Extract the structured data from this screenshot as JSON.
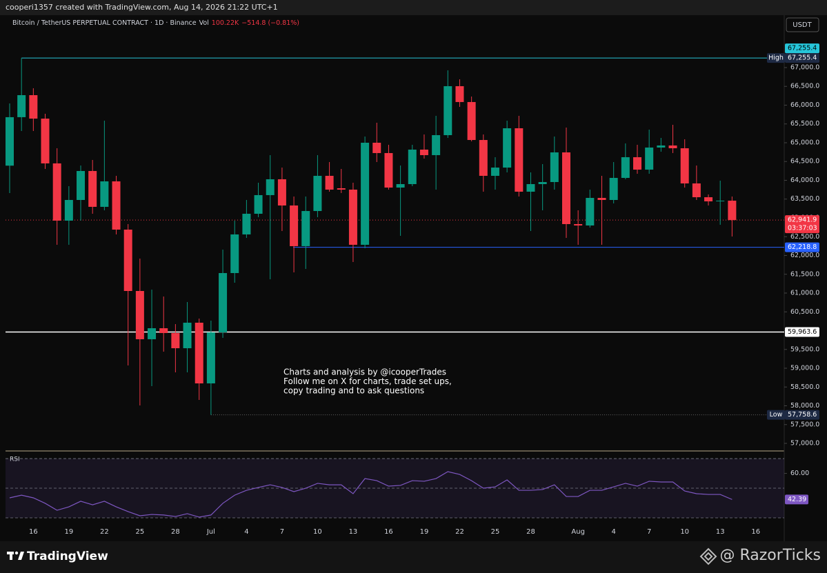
{
  "header": {
    "credit": "cooperi1357 created with TradingView.com, Aug 14, 2026 21:22 UTC+1",
    "currency": "USDT"
  },
  "footer": {
    "brand": "TradingView",
    "watermark": "@ RazorTicks"
  },
  "chart_data": [
    {
      "type": "candlestick",
      "title": "Bitcoin / TetherUS PERPETUAL CONTRACT · 1D · Binance",
      "volume_label": "Vol",
      "volume": "100.22K",
      "change": "−514.8 (−0.81%)",
      "up_color": "#089981",
      "down_color": "#f23645",
      "categories": [
        null,
        null,
        "16",
        null,
        null,
        "19",
        null,
        null,
        "22",
        null,
        null,
        "25",
        null,
        null,
        "28",
        null,
        null,
        "Jul",
        null,
        null,
        "4",
        null,
        null,
        "7",
        null,
        null,
        "10",
        null,
        null,
        "13",
        null,
        null,
        "16",
        null,
        null,
        "19",
        null,
        null,
        "22",
        null,
        null,
        "25",
        null,
        null,
        "28",
        null,
        null,
        null,
        "Aug",
        null,
        null,
        "4",
        null,
        null,
        "7",
        null,
        null,
        "10",
        null,
        null,
        "13",
        null,
        null,
        "16"
      ],
      "open": [
        64390,
        65680,
        66266,
        65642,
        64450,
        62927,
        63477,
        64248,
        63294,
        63972,
        62688,
        61055,
        59771,
        60064,
        59936,
        59532,
        60211,
        58596,
        59954,
        61532,
        62560,
        63110,
        63606,
        64028,
        63330,
        62248,
        63183,
        64119,
        63789,
        63752,
        62284,
        65000,
        64725,
        63807,
        63899,
        64817,
        64670,
        65202,
        66505,
        66083,
        65073,
        64119,
        64339,
        65385,
        63697,
        63899,
        63954,
        64743,
        62835,
        62798,
        63532,
        63477,
        64064,
        64615,
        64284,
        64872,
        64927,
        64853,
        63917,
        63550,
        63440,
        63458,
        null,
        null
      ],
      "high": [
        66046,
        67255.4,
        66450,
        65771,
        64853,
        63844,
        64394,
        64541,
        65587,
        64119,
        62835,
        61917,
        61092,
        60908,
        60174,
        60761,
        60321,
        60266,
        62156,
        62927,
        63477,
        63936,
        64670,
        64339,
        63569,
        63569,
        64670,
        64486,
        64303,
        63936,
        65165,
        65532,
        64945,
        64394,
        64945,
        65220,
        65716,
        66927,
        66688,
        66229,
        65220,
        64615,
        65587,
        65716,
        64211,
        64431,
        65165,
        65404,
        63202,
        63752,
        64119,
        64486,
        64982,
        64945,
        65349,
        65128,
        65477,
        65092,
        64394,
        63624,
        63991,
        63569,
        null,
        null
      ],
      "low": [
        63661,
        65312,
        65312,
        64303,
        62284,
        62284,
        62927,
        63110,
        63202,
        62560,
        59073,
        58009,
        58523,
        59440,
        58890,
        58890,
        58156,
        57758.6,
        59807,
        61275,
        62468,
        63018,
        61367,
        62651,
        61550,
        61642,
        63018,
        63697,
        63661,
        61826,
        62193,
        64486,
        63752,
        62523,
        63844,
        64578,
        63752,
        65128,
        65954,
        65037,
        63697,
        63752,
        64211,
        63569,
        62651,
        63202,
        63752,
        62468,
        62284,
        62743,
        62284,
        63385,
        64028,
        64174,
        64174,
        64761,
        64725,
        63807,
        63477,
        63330,
        62817,
        62505,
        null,
        null
      ],
      "close": [
        65680,
        66266,
        65642,
        64450,
        62927,
        63477,
        64248,
        63294,
        63972,
        62688,
        61055,
        59771,
        60064,
        59936,
        59532,
        60211,
        58596,
        59954,
        61532,
        62560,
        63110,
        63606,
        64028,
        63330,
        62248,
        63183,
        64119,
        63752,
        63752,
        62284,
        65000,
        64725,
        63807,
        63899,
        64817,
        64670,
        65202,
        66505,
        66083,
        65073,
        64119,
        64339,
        65385,
        63697,
        63899,
        63954,
        64743,
        62835,
        62798,
        63532,
        63477,
        64064,
        64615,
        64284,
        64872,
        64927,
        64853,
        63917,
        63550,
        63440,
        63458,
        62941.9,
        null,
        null
      ],
      "ylim": [
        56835,
        67954
      ],
      "yticks": [
        {
          "value": 57000,
          "label": "57,000.0"
        },
        {
          "value": 57500,
          "label": "57,500.0"
        },
        {
          "value": 58000,
          "label": "58,000.0"
        },
        {
          "value": 58500,
          "label": "58,500.0"
        },
        {
          "value": 59000,
          "label": "59,000.0"
        },
        {
          "value": 59500,
          "label": "59,500.0"
        },
        {
          "value": 60000,
          "label": "60,000.0"
        },
        {
          "value": 60500,
          "label": "60,500.0"
        },
        {
          "value": 61000,
          "label": "61,000.0"
        },
        {
          "value": 61500,
          "label": "61,500.0"
        },
        {
          "value": 62000,
          "label": "62,000.0"
        },
        {
          "value": 62500,
          "label": "62,500.0"
        },
        {
          "value": 63000,
          "label": "63,000.0"
        },
        {
          "value": 63500,
          "label": "63,500.0"
        },
        {
          "value": 64000,
          "label": "64,000.0"
        },
        {
          "value": 64500,
          "label": "64,500.0"
        },
        {
          "value": 65000,
          "label": "65,000.0"
        },
        {
          "value": 65500,
          "label": "65,500.0"
        },
        {
          "value": 66000,
          "label": "66,000.0"
        },
        {
          "value": 66500,
          "label": "66,500.0"
        },
        {
          "value": 67000,
          "label": "67,000.0"
        }
      ],
      "grid": false,
      "levels": [
        {
          "value": 67255.4,
          "label": "67,255.4",
          "color": "#26c6da"
        },
        {
          "value": 62218.8,
          "label": "62,218.8",
          "color": "#2962ff"
        },
        {
          "value": 59963.6,
          "label": "59,963.6",
          "color": "#ffffff"
        }
      ],
      "high_marker": {
        "tag": "High",
        "value": 67255.4,
        "label": "67,255.4"
      },
      "low_marker": {
        "tag": "Low",
        "value": 57758.6,
        "label": "57,758.6"
      },
      "last_price": {
        "value": 62941.9,
        "label": "62,941.9",
        "countdown": "03:37:03"
      },
      "annotation": [
        "Charts and analysis by @icooperTrades",
        "Follow me on X for charts, trade set ups,",
        "copy trading and to ask questions"
      ]
    },
    {
      "type": "line",
      "title": "RSI",
      "color": "#7e57c2",
      "values": [
        43.5,
        45.3,
        43.5,
        39.8,
        35.1,
        37.4,
        41.2,
        38.8,
        41.2,
        37.4,
        34.2,
        31.4,
        32.3,
        31.9,
        30.9,
        32.8,
        30.5,
        31.9,
        39.8,
        45.3,
        48.6,
        50.5,
        52.3,
        50.5,
        47.7,
        50,
        53.3,
        52.3,
        52.3,
        46.3,
        56.5,
        55.1,
        51.4,
        51.9,
        55.1,
        54.7,
        56.5,
        61.2,
        59.3,
        55.1,
        50,
        50.9,
        55.6,
        48.6,
        48.6,
        49.1,
        52.3,
        44.4,
        44.4,
        48.6,
        48.6,
        50.9,
        53.3,
        51.4,
        54.7,
        54.2,
        54.2,
        48.1,
        46.3,
        45.8,
        45.8,
        42.39,
        null,
        null
      ],
      "ylim": [
        25.8,
        73.3
      ],
      "yticks": [
        {
          "value": 60,
          "label": "60.00"
        }
      ],
      "bands": [
        70,
        50,
        30
      ]
    }
  ]
}
